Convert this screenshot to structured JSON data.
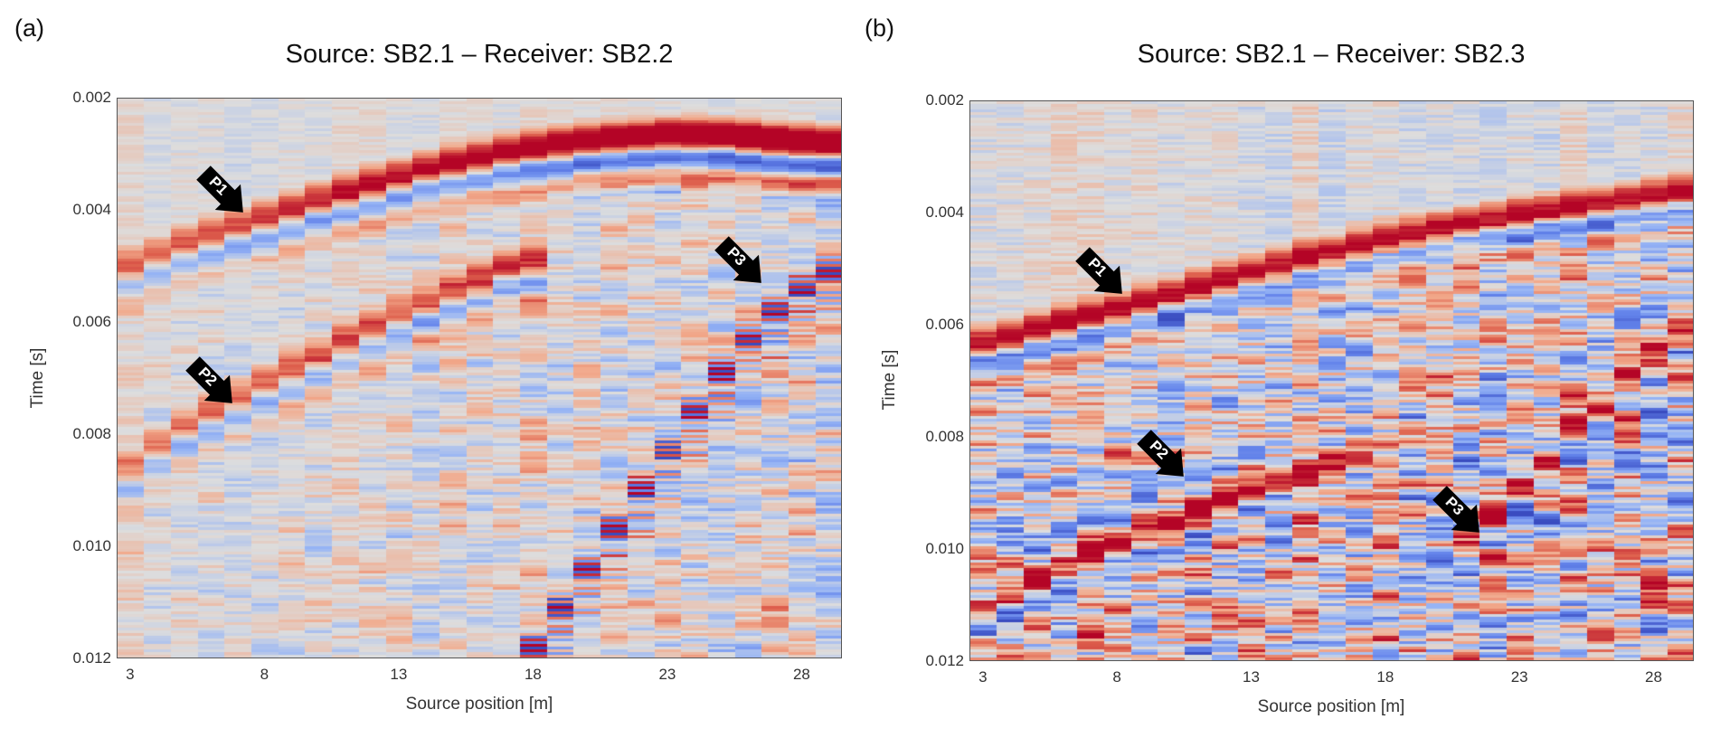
{
  "chart_data": [
    {
      "panel": "(a)",
      "type": "heatmap",
      "title": "Source: SB2.1 – Receiver: SB2.2",
      "xlabel": "Source position [m]",
      "ylabel": "Time [s]",
      "x_range": [
        3,
        29
      ],
      "y_range": [
        0.002,
        0.012
      ],
      "y_inverted": true,
      "xticks": [
        3,
        8,
        13,
        18,
        23,
        28
      ],
      "yticks": [
        "0.002",
        "0.004",
        "0.006",
        "0.008",
        "0.010",
        "0.012"
      ],
      "colormap": "coolwarm",
      "background_amplitude": 0.08,
      "events": [
        {
          "name": "P1",
          "amplitude": 0.55,
          "amp_growth": 0.045,
          "points": [
            [
              3,
              0.00485
            ],
            [
              5,
              0.00445
            ],
            [
              8,
              0.004
            ],
            [
              11,
              0.00355
            ],
            [
              14,
              0.00315
            ],
            [
              17,
              0.00285
            ],
            [
              20,
              0.00265
            ],
            [
              23,
              0.00255
            ],
            [
              25,
              0.00257
            ],
            [
              27,
              0.00265
            ],
            [
              29,
              0.0027
            ]
          ]
        },
        {
          "name": "P2",
          "amplitude": 0.5,
          "amp_growth": 0.02,
          "points": [
            [
              3,
              0.00845
            ],
            [
              5,
              0.0077
            ],
            [
              7,
              0.0072
            ],
            [
              9,
              0.0067
            ],
            [
              11,
              0.0062
            ],
            [
              13,
              0.0057
            ],
            [
              15,
              0.0053
            ],
            [
              17,
              0.0049
            ],
            [
              18,
              0.00477
            ]
          ]
        },
        {
          "name": "P3",
          "amplitude": 0.95,
          "amp_growth": 0.0,
          "points": [
            [
              18,
              0.0117
            ],
            [
              19,
              0.011
            ],
            [
              20,
              0.0103
            ],
            [
              21,
              0.0096
            ],
            [
              22,
              0.0089
            ],
            [
              23,
              0.0082
            ],
            [
              24,
              0.0075
            ],
            [
              25,
              0.0068
            ],
            [
              26,
              0.0062
            ],
            [
              27,
              0.0057
            ],
            [
              28,
              0.0053
            ],
            [
              29,
              0.005
            ]
          ]
        }
      ],
      "annotations": [
        {
          "text": "P1",
          "x": 7.2,
          "y": 0.00405
        },
        {
          "text": "P2",
          "x": 6.8,
          "y": 0.00745
        },
        {
          "text": "P3",
          "x": 26.5,
          "y": 0.0053
        }
      ]
    },
    {
      "panel": "(b)",
      "type": "heatmap",
      "title": "Source: SB2.1 – Receiver: SB2.3",
      "xlabel": "Source position [m]",
      "ylabel": "Time [s]",
      "x_range": [
        3,
        29
      ],
      "y_range": [
        0.002,
        0.012
      ],
      "y_inverted": true,
      "xticks": [
        3,
        8,
        13,
        18,
        23,
        28
      ],
      "yticks": [
        "0.002",
        "0.004",
        "0.006",
        "0.008",
        "0.010",
        "0.012"
      ],
      "colormap": "coolwarm",
      "background_amplitude": 0.12,
      "noise_below_first_arrival": 0.55,
      "events": [
        {
          "name": "P1",
          "amplitude": 1.0,
          "amp_growth": 0.0,
          "points": [
            [
              3,
              0.0062
            ],
            [
              5,
              0.00595
            ],
            [
              8,
              0.0056
            ],
            [
              11,
              0.0052
            ],
            [
              14,
              0.0048
            ],
            [
              17,
              0.00445
            ],
            [
              20,
              0.00415
            ],
            [
              23,
              0.0039
            ],
            [
              26,
              0.0037
            ],
            [
              29,
              0.0035
            ]
          ]
        },
        {
          "name": "P2",
          "amplitude": 0.85,
          "amp_growth": 0.0,
          "points": [
            [
              3,
              0.011
            ],
            [
              5,
              0.0105
            ],
            [
              7,
              0.01
            ],
            [
              9,
              0.0096
            ],
            [
              11,
              0.0092
            ],
            [
              13,
              0.0088
            ],
            [
              15,
              0.0085
            ],
            [
              17,
              0.0082
            ]
          ]
        },
        {
          "name": "P3",
          "amplitude": 0.9,
          "amp_growth": 0.0,
          "points": [
            [
              21,
              0.0099
            ],
            [
              22,
              0.0093
            ],
            [
              23,
              0.0088
            ],
            [
              24,
              0.0083
            ],
            [
              25,
              0.0078
            ],
            [
              26,
              0.0073
            ],
            [
              27,
              0.0068
            ],
            [
              28,
              0.0064
            ],
            [
              29,
              0.006
            ]
          ]
        }
      ],
      "annotations": [
        {
          "text": "P1",
          "x": 8.2,
          "y": 0.00545
        },
        {
          "text": "P2",
          "x": 10.5,
          "y": 0.0087
        },
        {
          "text": "P3",
          "x": 21.5,
          "y": 0.0097
        }
      ]
    }
  ]
}
